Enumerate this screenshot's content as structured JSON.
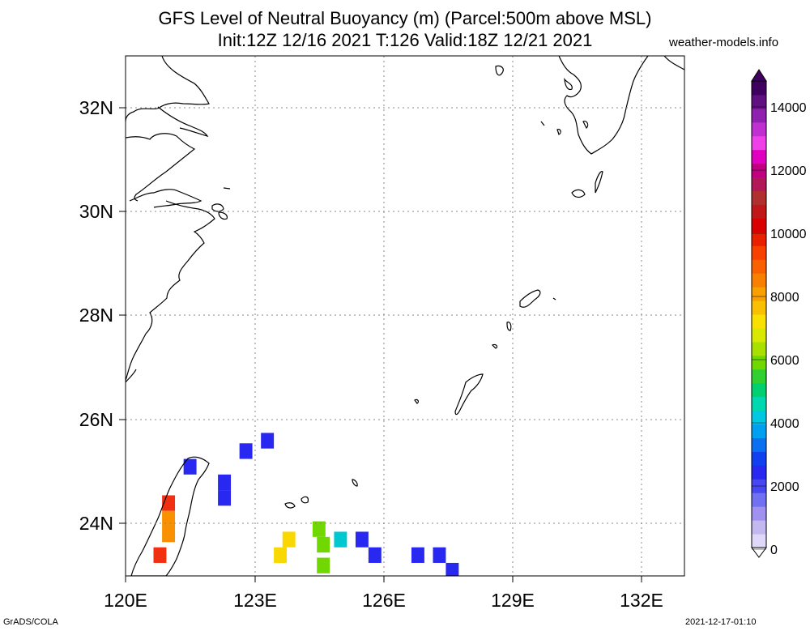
{
  "title": {
    "line1": "GFS Level of Neutral Buoyancy (m) (Parcel:500m above MSL)",
    "line2": "Init:12Z 12/16 2021 T:126 Valid:18Z 12/21 2021"
  },
  "site": "weather-models.info",
  "footer": {
    "left": "GrADS/COLA",
    "right": "2021-12-17-01:10"
  },
  "axes": {
    "x_ticks": [
      "120E",
      "123E",
      "126E",
      "129E",
      "132E"
    ],
    "y_ticks": [
      "32N",
      "30N",
      "28N",
      "26N",
      "24N"
    ],
    "lon_range": [
      120,
      133
    ],
    "lat_range": [
      23,
      33
    ]
  },
  "colorbar": {
    "labels": [
      "14000",
      "12000",
      "10000",
      "8000",
      "6000",
      "4000",
      "2000",
      "0"
    ],
    "range": [
      0,
      15000
    ],
    "colors": [
      "#e0d8f8",
      "#c4b8f0",
      "#a090f0",
      "#7070f0",
      "#4848f0",
      "#2828f0",
      "#1040f0",
      "#0a70f0",
      "#00a0f0",
      "#00c8e0",
      "#00d8b0",
      "#00d070",
      "#30d030",
      "#70d800",
      "#a8e000",
      "#d8e800",
      "#f8e000",
      "#f8c000",
      "#f8a000",
      "#f88000",
      "#f86000",
      "#f84000",
      "#e82000",
      "#d80000",
      "#c01818",
      "#b03030",
      "#b01858",
      "#c00080",
      "#e000c0",
      "#f040e8",
      "#c030d0",
      "#9020b0",
      "#601080",
      "#400060"
    ]
  },
  "map": {
    "field_cells": [
      {
        "lon": 121.0,
        "lat": 24.4,
        "level": "red"
      },
      {
        "lon": 121.0,
        "lat": 24.1,
        "level": "orange"
      },
      {
        "lon": 121.0,
        "lat": 23.8,
        "level": "orange"
      },
      {
        "lon": 120.8,
        "lat": 23.4,
        "level": "red"
      },
      {
        "lon": 121.5,
        "lat": 25.1,
        "level": "blue"
      },
      {
        "lon": 122.3,
        "lat": 24.8,
        "level": "blue"
      },
      {
        "lon": 122.3,
        "lat": 24.5,
        "level": "blue"
      },
      {
        "lon": 122.8,
        "lat": 25.4,
        "level": "blue"
      },
      {
        "lon": 123.3,
        "lat": 25.6,
        "level": "blue"
      },
      {
        "lon": 123.6,
        "lat": 23.4,
        "level": "yellow"
      },
      {
        "lon": 123.8,
        "lat": 23.7,
        "level": "yellow"
      },
      {
        "lon": 124.5,
        "lat": 23.9,
        "level": "green"
      },
      {
        "lon": 124.6,
        "lat": 23.6,
        "level": "green"
      },
      {
        "lon": 124.6,
        "lat": 23.2,
        "level": "green"
      },
      {
        "lon": 125.0,
        "lat": 23.7,
        "level": "cyan"
      },
      {
        "lon": 125.5,
        "lat": 23.7,
        "level": "blue"
      },
      {
        "lon": 125.8,
        "lat": 23.4,
        "level": "blue"
      },
      {
        "lon": 126.8,
        "lat": 23.4,
        "level": "blue"
      },
      {
        "lon": 127.3,
        "lat": 23.4,
        "level": "blue"
      },
      {
        "lon": 127.6,
        "lat": 23.1,
        "level": "blue"
      }
    ],
    "level_colors": {
      "red": "#f03010",
      "orange": "#f89000",
      "yellow": "#f8d800",
      "green": "#70d800",
      "cyan": "#00c8d0",
      "blue": "#2828f0"
    }
  }
}
